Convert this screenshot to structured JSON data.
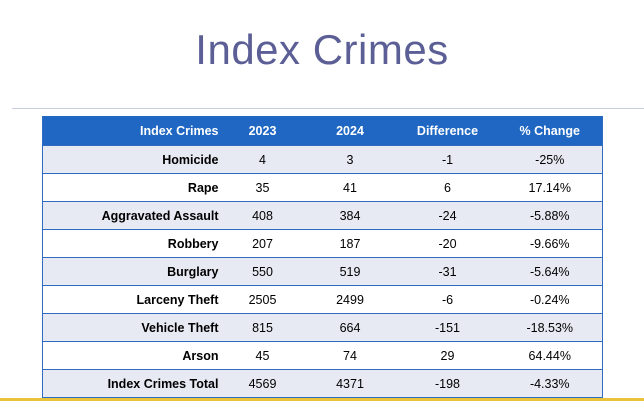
{
  "slide": {
    "title": "Index Crimes"
  },
  "table": {
    "headers": [
      "Index Crimes",
      "2023",
      "2024",
      "Difference",
      "% Change"
    ],
    "rows": [
      [
        "Homicide",
        "4",
        "3",
        "-1",
        "-25%"
      ],
      [
        "Rape",
        "35",
        "41",
        "6",
        "17.14%"
      ],
      [
        "Aggravated Assault",
        "408",
        "384",
        "-24",
        "-5.88%"
      ],
      [
        "Robbery",
        "207",
        "187",
        "-20",
        "-9.66%"
      ],
      [
        "Burglary",
        "550",
        "519",
        "-31",
        "-5.64%"
      ],
      [
        "Larceny Theft",
        "2505",
        "2499",
        "-6",
        "-0.24%"
      ],
      [
        "Vehicle Theft",
        "815",
        "664",
        "-151",
        "-18.53%"
      ],
      [
        "Arson",
        "45",
        "74",
        "29",
        "64.44%"
      ],
      [
        "Index Crimes Total",
        "4569",
        "4371",
        "-198",
        "-4.33%"
      ]
    ]
  },
  "colors": {
    "title": "#5b5f95",
    "header_bg": "#1f67c2",
    "row_band": "#e8eaf3",
    "accent_line": "#e9c33a"
  }
}
